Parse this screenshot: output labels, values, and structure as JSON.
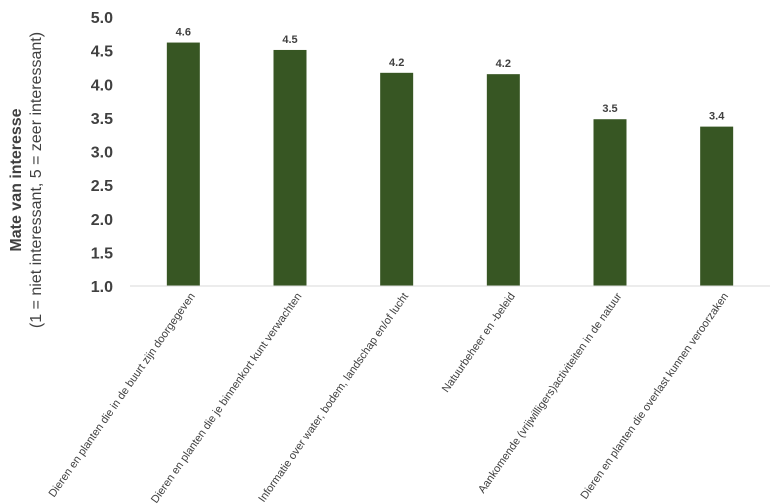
{
  "chart_data": {
    "type": "bar",
    "ylabel": "Mate van interesse",
    "ylabel_sub": "(1 = niet interessant, 5 = zeer interessant)",
    "ylim": [
      1.0,
      5.0
    ],
    "yticks": [
      "1.0",
      "1.5",
      "2.0",
      "2.5",
      "3.0",
      "3.5",
      "4.0",
      "4.5",
      "5.0"
    ],
    "grid": false,
    "legend": "none",
    "bar_color": "#375623",
    "categories": [
      "Dieren en planten die in de buurt zijn doorgegeven",
      "Dieren en planten die je binnenkort kunt verwachten",
      "Informatie over water, bodem, landschap en/of lucht",
      "Natuurbeheer en -beleid",
      "Aankomende (vrijwilligers)activiteiten in de natuur",
      "Dieren en planten die overlast kunnen veroorzaken"
    ],
    "values": [
      4.62,
      4.51,
      4.17,
      4.15,
      3.48,
      3.37
    ],
    "data_labels": [
      "4.6",
      "4.5",
      "4.2",
      "4.2",
      "3.5",
      "3.4"
    ]
  }
}
